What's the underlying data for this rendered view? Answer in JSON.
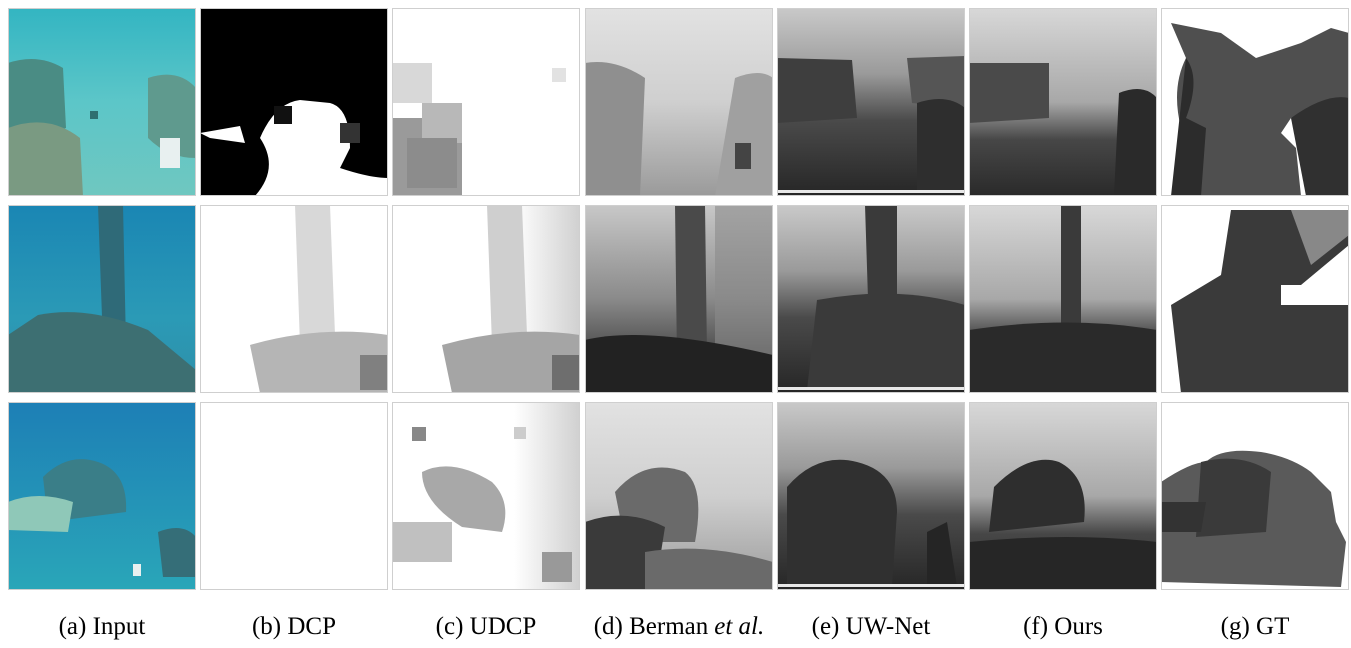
{
  "captions": [
    {
      "label": "(a) Input"
    },
    {
      "label": "(b) DCP"
    },
    {
      "label": "(c) UDCP"
    },
    {
      "label": "(d) Berman",
      "emphasis": "et al."
    },
    {
      "label": "(e) UW-Net"
    },
    {
      "label": "(f) Ours"
    },
    {
      "label": "(g) GT"
    }
  ]
}
